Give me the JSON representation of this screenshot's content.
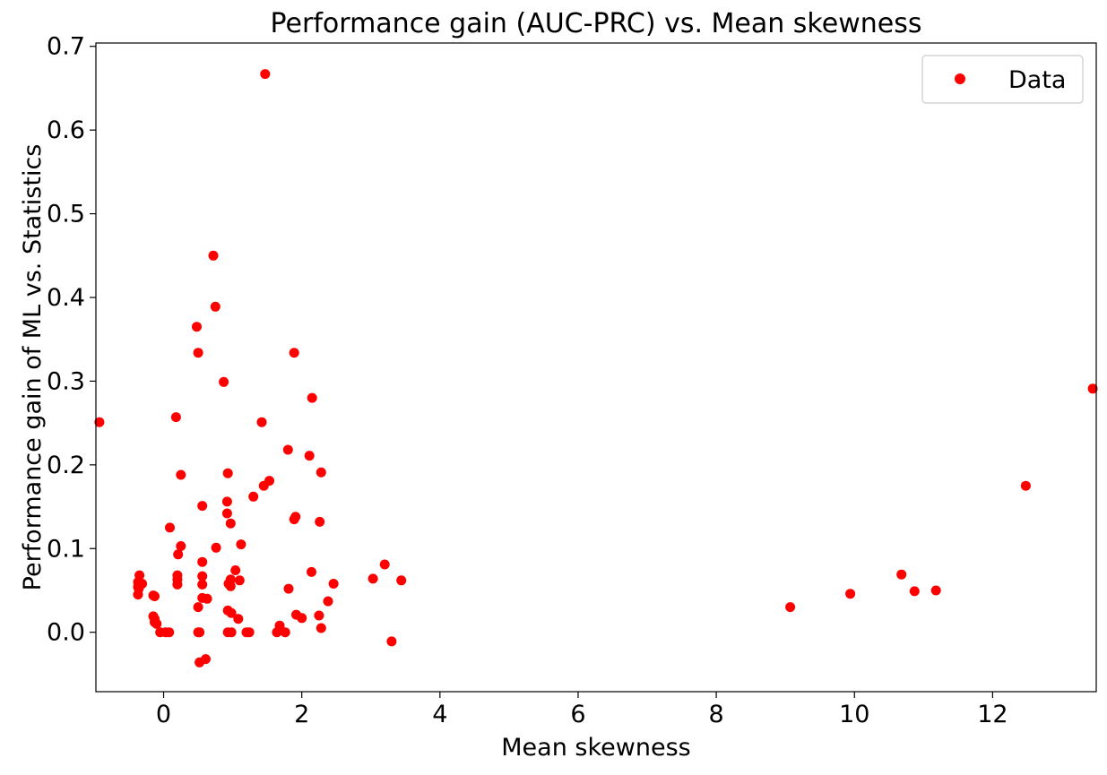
{
  "chart_data": {
    "type": "scatter",
    "title": "Performance gain (AUC-PRC) vs. Mean skewness",
    "xlabel": "Mean skewness",
    "ylabel": "Performance gain of ML vs. Statistics",
    "xlim": [
      -0.98,
      13.5
    ],
    "ylim": [
      -0.071,
      0.704
    ],
    "x_ticks": [
      0,
      2,
      4,
      6,
      8,
      10,
      12
    ],
    "y_ticks": [
      0.0,
      0.1,
      0.2,
      0.3,
      0.4,
      0.5,
      0.6,
      0.7
    ],
    "grid": false,
    "legend_position": "top-right",
    "marker_color": "#ff0000",
    "series": [
      {
        "name": "Data",
        "points": [
          [
            -0.93,
            0.251
          ],
          [
            -0.35,
            0.068
          ],
          [
            -0.37,
            0.06
          ],
          [
            -0.36,
            0.057
          ],
          [
            -0.37,
            0.054
          ],
          [
            -0.36,
            0.052
          ],
          [
            -0.37,
            0.045
          ],
          [
            -0.31,
            0.058
          ],
          [
            -0.15,
            0.044
          ],
          [
            -0.13,
            0.043
          ],
          [
            -0.15,
            0.019
          ],
          [
            -0.13,
            0.016
          ],
          [
            -0.13,
            0.012
          ],
          [
            -0.1,
            0.01
          ],
          [
            -0.05,
            0.0
          ],
          [
            0.03,
            0.0
          ],
          [
            0.08,
            0.0
          ],
          [
            0.09,
            0.125
          ],
          [
            0.18,
            0.257
          ],
          [
            0.21,
            0.093
          ],
          [
            0.2,
            0.068
          ],
          [
            0.2,
            0.063
          ],
          [
            0.2,
            0.057
          ],
          [
            0.25,
            0.188
          ],
          [
            0.25,
            0.103
          ],
          [
            0.48,
            0.365
          ],
          [
            0.5,
            0.334
          ],
          [
            0.5,
            0.03
          ],
          [
            0.5,
            0.0
          ],
          [
            0.52,
            0.0
          ],
          [
            0.52,
            -0.036
          ],
          [
            0.56,
            0.151
          ],
          [
            0.56,
            0.084
          ],
          [
            0.56,
            0.067
          ],
          [
            0.56,
            0.057
          ],
          [
            0.56,
            0.041
          ],
          [
            0.63,
            0.04
          ],
          [
            0.61,
            -0.032
          ],
          [
            0.72,
            0.45
          ],
          [
            0.75,
            0.389
          ],
          [
            0.76,
            0.101
          ],
          [
            0.87,
            0.299
          ],
          [
            0.93,
            0.19
          ],
          [
            0.92,
            0.156
          ],
          [
            0.92,
            0.142
          ],
          [
            0.97,
            0.13
          ],
          [
            0.97,
            0.063
          ],
          [
            0.94,
            0.058
          ],
          [
            0.97,
            0.055
          ],
          [
            0.93,
            0.026
          ],
          [
            0.98,
            0.023
          ],
          [
            0.93,
            0.0
          ],
          [
            0.98,
            0.0
          ],
          [
            1.04,
            0.074
          ],
          [
            1.1,
            0.062
          ],
          [
            1.08,
            0.016
          ],
          [
            1.12,
            0.105
          ],
          [
            1.2,
            0.0
          ],
          [
            1.24,
            0.0
          ],
          [
            1.3,
            0.162
          ],
          [
            1.42,
            0.251
          ],
          [
            1.45,
            0.175
          ],
          [
            1.47,
            0.667
          ],
          [
            1.53,
            0.181
          ],
          [
            1.64,
            0.0
          ],
          [
            1.68,
            0.008
          ],
          [
            1.76,
            0.0
          ],
          [
            1.8,
            0.218
          ],
          [
            1.81,
            0.052
          ],
          [
            1.89,
            0.334
          ],
          [
            1.89,
            0.135
          ],
          [
            1.91,
            0.138
          ],
          [
            1.92,
            0.021
          ],
          [
            2.0,
            0.017
          ],
          [
            2.11,
            0.211
          ],
          [
            2.15,
            0.28
          ],
          [
            2.14,
            0.072
          ],
          [
            2.25,
            0.02
          ],
          [
            2.26,
            0.132
          ],
          [
            2.28,
            0.191
          ],
          [
            2.28,
            0.005
          ],
          [
            2.38,
            0.037
          ],
          [
            2.46,
            0.058
          ],
          [
            3.03,
            0.064
          ],
          [
            3.2,
            0.081
          ],
          [
            3.3,
            -0.011
          ],
          [
            3.44,
            0.062
          ],
          [
            9.07,
            0.03
          ],
          [
            9.94,
            0.046
          ],
          [
            10.68,
            0.069
          ],
          [
            10.87,
            0.049
          ],
          [
            11.18,
            0.05
          ],
          [
            12.48,
            0.175
          ],
          [
            13.45,
            0.291
          ]
        ]
      }
    ]
  }
}
